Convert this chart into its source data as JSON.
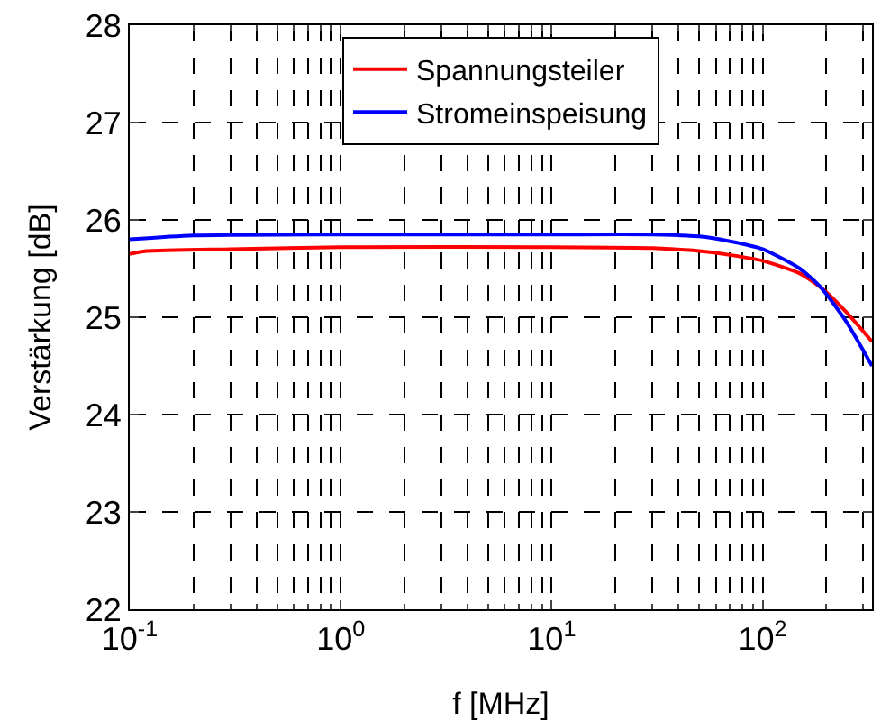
{
  "chart_data": {
    "type": "line",
    "xlabel": "f [MHz]",
    "ylabel": "Verstärkung [dB]",
    "log": "x",
    "xlim": [
      0.1,
      330
    ],
    "xticks": [
      {
        "value": 0.1,
        "label": "10$^{-1}$"
      },
      {
        "value": 1,
        "label": "10$^{0}$"
      },
      {
        "value": 10,
        "label": "10$^{1}$"
      },
      {
        "value": 100,
        "label": "10$^{2}$"
      }
    ],
    "ylim": [
      22,
      28
    ],
    "yticks": [
      22,
      23,
      24,
      25,
      26,
      27,
      28
    ],
    "grid": true,
    "legend": "top",
    "line_style": "solid",
    "marker": "none",
    "series": [
      {
        "name": "Spannungsteiler",
        "color": "#ff0000",
        "x": [
          0.1,
          0.12,
          0.3,
          1,
          10,
          30,
          50,
          70,
          100,
          150,
          190,
          250,
          330
        ],
        "values": [
          25.65,
          25.68,
          25.7,
          25.72,
          25.72,
          25.71,
          25.68,
          25.64,
          25.58,
          25.45,
          25.3,
          25.05,
          24.75
        ]
      },
      {
        "name": "Stromeinspeisung",
        "color": "#0000ff",
        "x": [
          0.1,
          0.2,
          1,
          10,
          30,
          50,
          70,
          100,
          150,
          190,
          250,
          330
        ],
        "values": [
          25.8,
          25.84,
          25.85,
          25.85,
          25.85,
          25.83,
          25.78,
          25.7,
          25.5,
          25.3,
          24.95,
          24.5
        ]
      }
    ]
  }
}
